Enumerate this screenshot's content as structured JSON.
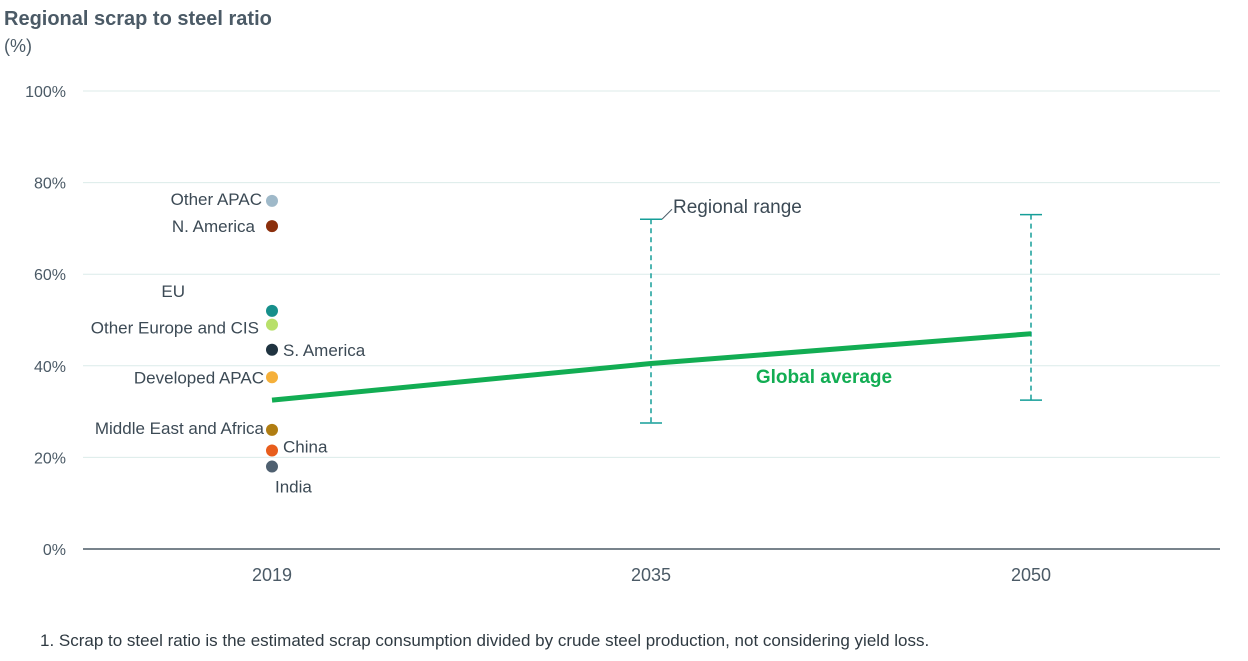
{
  "title": "Regional scrap to steel ratio",
  "unit_label": "(%)",
  "footnote": "1. Scrap to steel ratio is the estimated scrap consumption divided by crude steel production, not considering yield loss.",
  "colors": {
    "grid": "#dcebea",
    "axis": "#4b5a66",
    "tick_text": "#4b5a66",
    "global": "#12ad53",
    "range": "#159e98"
  },
  "chart_data": {
    "type": "scatter",
    "title": "Regional scrap to steel ratio",
    "ylabel": "(%)",
    "xlabel": "",
    "ylim": [
      0,
      100
    ],
    "y_ticks": [
      0,
      20,
      40,
      60,
      80,
      100
    ],
    "y_tick_labels": [
      "0%",
      "20%",
      "40%",
      "60%",
      "80%",
      "100%"
    ],
    "categories": [
      "2019",
      "2035",
      "2050"
    ],
    "grid": true,
    "regions_2019": [
      {
        "name": "Other APAC",
        "value": 76,
        "color": "#9fb9c9"
      },
      {
        "name": "N. America",
        "value": 70.5,
        "color": "#8b2f0c"
      },
      {
        "name": "EU",
        "value": 52,
        "color": "#168f8b"
      },
      {
        "name": "Other Europe and CIS",
        "value": 49,
        "color": "#b8e06a"
      },
      {
        "name": "S. America",
        "value": 43.5,
        "color": "#1f3340"
      },
      {
        "name": "Developed APAC",
        "value": 37.5,
        "color": "#f5b03a"
      },
      {
        "name": "Middle East and Africa",
        "value": 26,
        "color": "#b07d12"
      },
      {
        "name": "China",
        "value": 21.5,
        "color": "#e85d1c"
      },
      {
        "name": "India",
        "value": 18,
        "color": "#4f6070"
      }
    ],
    "global_average": {
      "name": "Global average",
      "x": [
        "2019",
        "2035",
        "2050"
      ],
      "values": [
        32.5,
        40.5,
        47
      ]
    },
    "regional_range": {
      "name": "Regional range",
      "ranges": [
        {
          "x": "2035",
          "low": 27.5,
          "high": 72
        },
        {
          "x": "2050",
          "low": 32.5,
          "high": 73
        }
      ]
    }
  }
}
